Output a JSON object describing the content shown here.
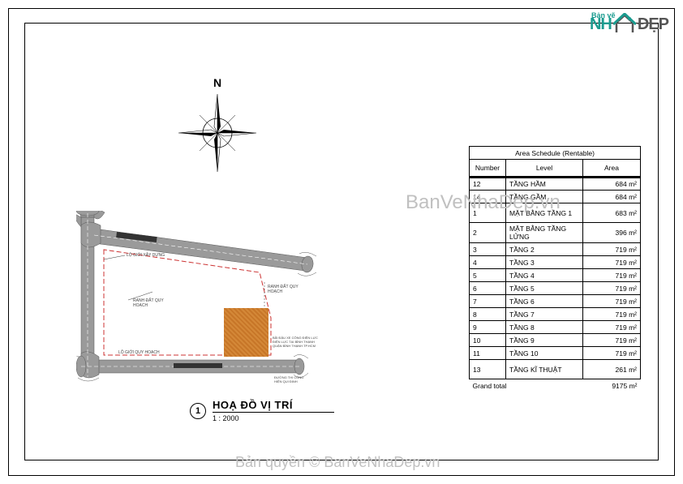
{
  "logo": {
    "topText": "Bản vẽ",
    "main": "NH",
    "end": "ĐẸP"
  },
  "compass": {
    "north": "N"
  },
  "titleBlock": {
    "number": "1",
    "title": "HOẠ ĐỒ VỊ TRÍ",
    "scale": "1 : 2000"
  },
  "schedule": {
    "title": "Area Schedule (Rentable)",
    "headers": [
      "Number",
      "Level",
      "Area"
    ],
    "rows": [
      {
        "num": "12",
        "level": "TẦNG HẦM",
        "area": "684 m²"
      },
      {
        "num": "14",
        "level": "TẦNG GẦM",
        "area": "684 m²"
      },
      {
        "num": "1",
        "level": "MẶT BẰNG TẦNG 1",
        "area": "683 m²"
      },
      {
        "num": "2",
        "level": "MẶT BẰNG TẦNG LỬNG",
        "area": "396 m²"
      },
      {
        "num": "3",
        "level": "TẦNG 2",
        "area": "719 m²"
      },
      {
        "num": "4",
        "level": "TẦNG 3",
        "area": "719 m²"
      },
      {
        "num": "5",
        "level": "TẦNG 4",
        "area": "719 m²"
      },
      {
        "num": "6",
        "level": "TẦNG 5",
        "area": "719 m²"
      },
      {
        "num": "7",
        "level": "TẦNG 6",
        "area": "719 m²"
      },
      {
        "num": "8",
        "level": "TẦNG 7",
        "area": "719 m²"
      },
      {
        "num": "9",
        "level": "TẦNG 8",
        "area": "719 m²"
      },
      {
        "num": "10",
        "level": "TẦNG 9",
        "area": "719 m²"
      },
      {
        "num": "11",
        "level": "TẦNG 10",
        "area": "719 m²"
      },
      {
        "num": "13",
        "level": "TẦNG KĨ THUẬT",
        "area": "261 m²"
      }
    ],
    "total": {
      "label": "Grand total",
      "area": "9175 m²"
    }
  },
  "watermarks": {
    "w1": "BanVeNhaDep.vn",
    "w2": "Bản quyền © BanVeNhaDep.vn"
  },
  "colors": {
    "border": "#000000",
    "road": "#9a9a9a",
    "roadStroke": "#555555",
    "dashLine": "#cc3333",
    "building": "#d48838",
    "logoTeal": "#1a9b8f",
    "logoGray": "#555555",
    "watermark": "#c0c0c0"
  },
  "labels": {
    "lo_gioi": "LỘ GIỚI XÂY DỰNG",
    "ranh": "RANH ĐẤT QUY HOẠCH",
    "note": "BÃI ĐẬU XE CÔNG ĐIỆN LỰC TẠI BÌNH THẠNH"
  }
}
